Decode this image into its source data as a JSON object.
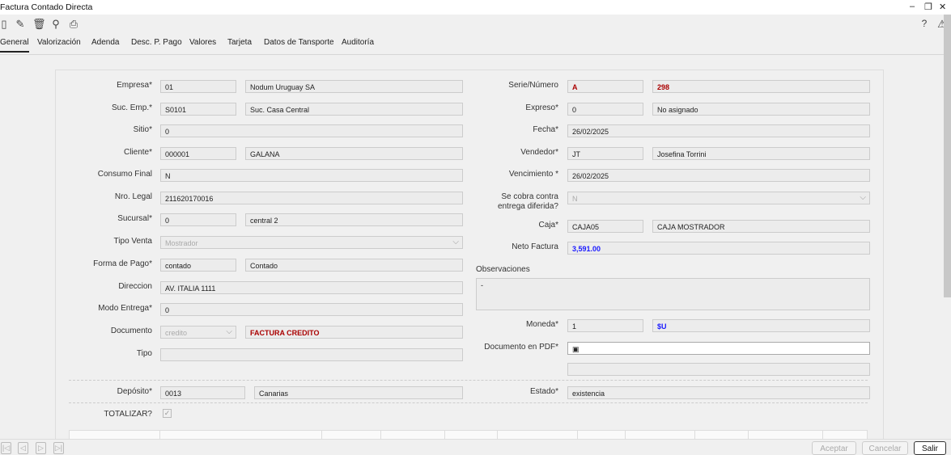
{
  "window": {
    "title": "Factura Contado Directa",
    "minimize": "–",
    "restore": "❐",
    "close": "✕"
  },
  "toolbar": {
    "icons": [
      "new-icon",
      "edit-icon",
      "delete-icon",
      "search-icon",
      "print-icon"
    ],
    "help": "?",
    "alert": "⚠"
  },
  "tabs": [
    "General",
    "Valorización",
    "Adenda",
    "Desc. P. Pago",
    "Valores",
    "Tarjeta",
    "Datos de Tansporte",
    "Auditoría"
  ],
  "left": {
    "empresa": {
      "label": "Empresa*",
      "code": "01",
      "desc": "Nodum Uruguay SA"
    },
    "suc_emp": {
      "label": "Suc. Emp.*",
      "code": "S0101",
      "desc": "Suc. Casa Central"
    },
    "sitio": {
      "label": "Sitio*",
      "value": "0"
    },
    "cliente": {
      "label": "Cliente*",
      "code": "000001",
      "desc": "GALANA"
    },
    "consumo_final": {
      "label": "Consumo Final",
      "value": "N"
    },
    "nro_legal": {
      "label": "Nro. Legal",
      "value": "211620170016"
    },
    "sucursal": {
      "label": "Sucursal*",
      "code": "0",
      "desc": "central 2"
    },
    "tipo_venta": {
      "label": "Tipo Venta",
      "value": "Mostrador"
    },
    "forma_pago": {
      "label": "Forma de Pago*",
      "code": "contado",
      "desc": "Contado"
    },
    "direccion": {
      "label": "Direccion",
      "value": "AV. ITALIA 1111"
    },
    "modo_entrega": {
      "label": "Modo Entrega*",
      "value": "0"
    },
    "documento": {
      "label": "Documento",
      "code": "credito",
      "desc": "FACTURA CREDITO"
    },
    "tipo": {
      "label": "Tipo",
      "value": ""
    },
    "deposito": {
      "label": "Depósito*",
      "code": "0013",
      "desc": "Canarias"
    },
    "totalizar": {
      "label": "TOTALIZAR?",
      "checked": true
    }
  },
  "right": {
    "serie": {
      "label": "Serie/Número",
      "code": "A",
      "desc": "298"
    },
    "expreso": {
      "label": "Expreso*",
      "code": "0",
      "desc": "No asignado"
    },
    "fecha": {
      "label": "Fecha*",
      "value": "26/02/2025"
    },
    "vendedor": {
      "label": "Vendedor*",
      "code": "JT",
      "desc": "Josefina Torrini"
    },
    "vencimiento": {
      "label": "Vencimiento *",
      "value": "26/02/2025"
    },
    "cobra": {
      "label1": "Se cobra contra",
      "label2": "entrega diferida?",
      "value": "N"
    },
    "caja": {
      "label": "Caja*",
      "code": "CAJA05",
      "desc": "CAJA MOSTRADOR"
    },
    "neto": {
      "label": "Neto Factura",
      "value": "3,591.00"
    },
    "observaciones": {
      "label": "Observaciones",
      "value": "-"
    },
    "moneda": {
      "label": "Moneda*",
      "code": "1",
      "desc": "$U"
    },
    "pdf": {
      "label": "Documento en PDF*",
      "value": ""
    },
    "estado": {
      "label": "Estado*",
      "value": "existencia"
    }
  },
  "footer": {
    "aceptar": "Aceptar",
    "cancelar": "Cancelar",
    "salir": "Salir"
  },
  "colors": {
    "red": "#a00000",
    "blue": "#1a1aff"
  }
}
